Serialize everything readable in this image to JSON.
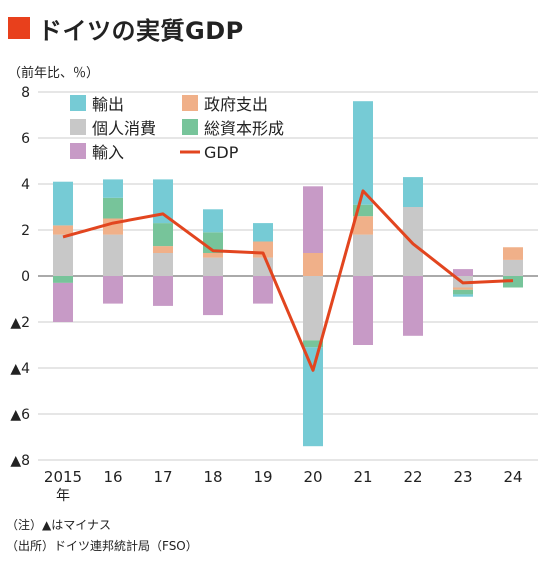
{
  "title": "ドイツの実質GDP",
  "unit_label": "（前年比、％）",
  "notes": [
    "（注）▲はマイナス",
    "（出所）ドイツ連邦統計局（FSO）"
  ],
  "colors": {
    "title_square": "#e8401c",
    "exports": "#76cbd5",
    "government": "#f0b089",
    "consumption": "#c8c8c8",
    "capital": "#77c49a",
    "imports": "#c79ac6",
    "gdp_line": "#e2451f"
  },
  "chart_data": {
    "type": "bar",
    "stacked": true,
    "categories": [
      "2015",
      "16",
      "17",
      "18",
      "19",
      "20",
      "21",
      "22",
      "23",
      "24"
    ],
    "first_category_suffix": "年",
    "yticks": [
      "8",
      "6",
      "4",
      "2",
      "0",
      "▲2",
      "▲4",
      "▲6",
      "▲8"
    ],
    "ylim": [
      -8,
      8
    ],
    "grid": true,
    "legend_position": "top-left",
    "series": [
      {
        "key": "consumption",
        "name": "個人消費",
        "values": [
          1.8,
          1.8,
          1.0,
          0.8,
          0.8,
          -2.8,
          1.8,
          3.0,
          -0.5,
          0.7
        ]
      },
      {
        "key": "government",
        "name": "政府支出",
        "values": [
          0.4,
          0.7,
          0.3,
          0.2,
          0.7,
          1.0,
          0.8,
          0.0,
          -0.1,
          0.55
        ]
      },
      {
        "key": "capital",
        "name": "総資本形成",
        "values": [
          -0.3,
          0.9,
          1.0,
          0.9,
          0.0,
          -0.3,
          0.5,
          0.0,
          -0.2,
          -0.5
        ]
      },
      {
        "key": "exports",
        "name": "輸出",
        "values": [
          1.9,
          0.8,
          1.9,
          1.0,
          0.8,
          -4.3,
          4.5,
          1.3,
          -0.1,
          0.0
        ]
      },
      {
        "key": "imports",
        "name": "輸入",
        "values": [
          -1.7,
          -1.2,
          -1.3,
          -1.7,
          -1.2,
          2.9,
          -3.0,
          -2.6,
          0.3,
          0.0
        ]
      }
    ],
    "line": {
      "key": "gdp",
      "name": "GDP",
      "values": [
        1.7,
        2.3,
        2.7,
        1.1,
        1.0,
        -4.1,
        3.7,
        1.4,
        -0.3,
        -0.2
      ]
    },
    "legend": [
      {
        "key": "exports",
        "label": "輸出",
        "kind": "box"
      },
      {
        "key": "government",
        "label": "政府支出",
        "kind": "box"
      },
      {
        "key": "consumption",
        "label": "個人消費",
        "kind": "box"
      },
      {
        "key": "capital",
        "label": "総資本形成",
        "kind": "box"
      },
      {
        "key": "imports",
        "label": "輸入",
        "kind": "box"
      },
      {
        "key": "gdp_line",
        "label": "GDP",
        "kind": "line"
      }
    ]
  }
}
